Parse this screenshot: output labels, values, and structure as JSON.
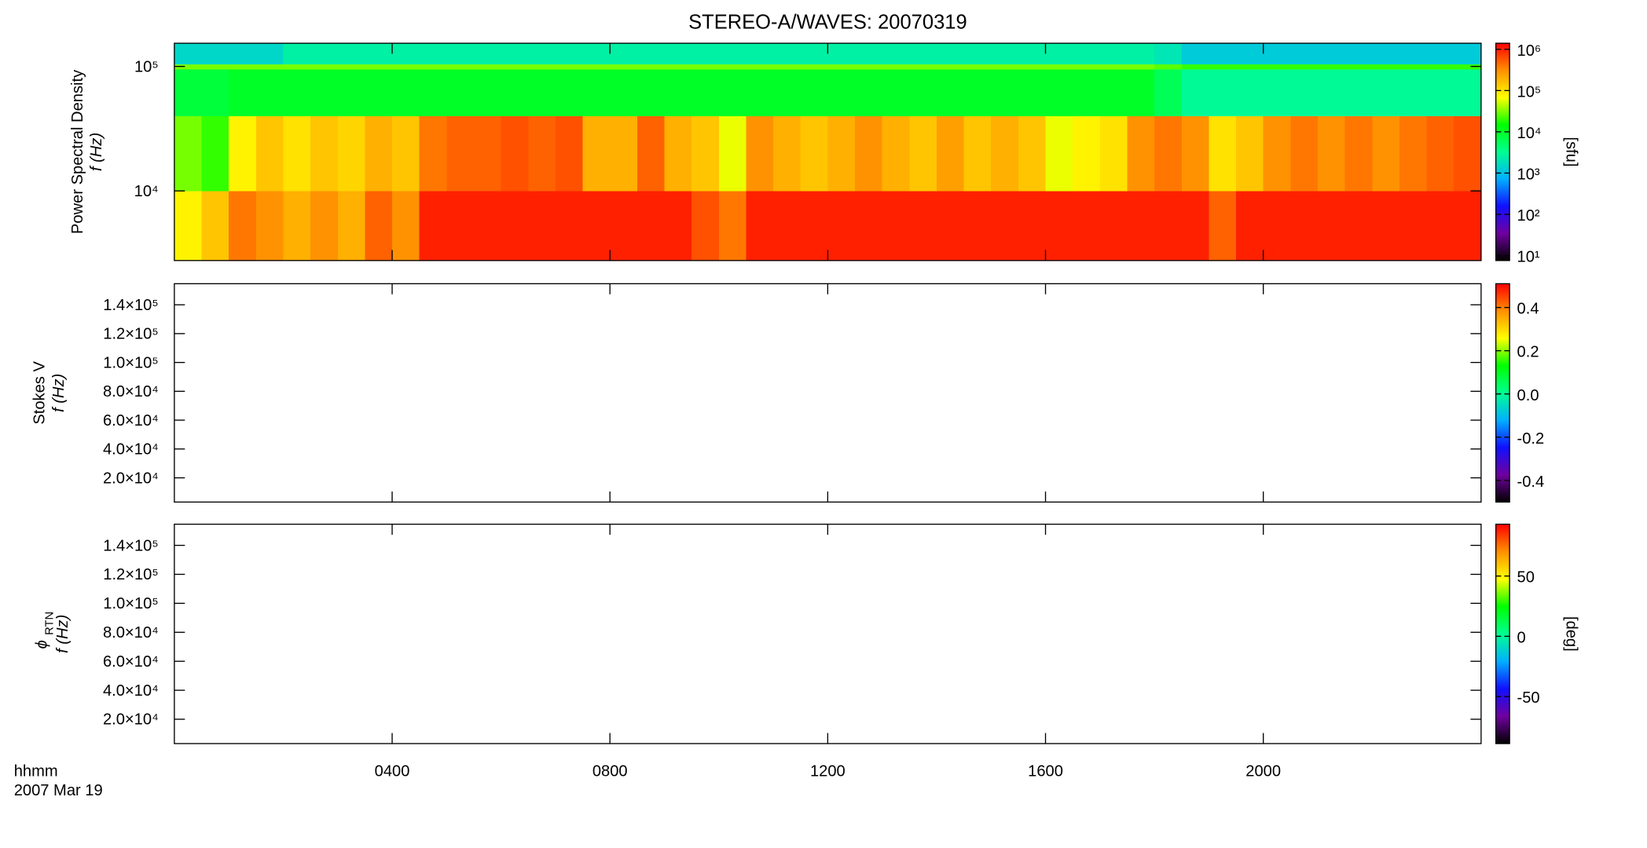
{
  "chart_data": [
    {
      "type": "spectrogram",
      "title": "STEREO-A/WAVES: 20070319",
      "ylabel_lines": [
        "Power Spectral Density",
        "f (Hz)"
      ],
      "ylog": true,
      "ylim": [
        2760,
        153500
      ],
      "yticks": [
        {
          "value": 10000,
          "label": "10⁴"
        },
        {
          "value": 100000,
          "label": "10⁵"
        }
      ],
      "xlim": [
        0,
        24
      ],
      "time_edges": [
        0,
        0.5,
        1,
        1.5,
        2,
        2.5,
        3,
        3.5,
        4,
        4.5,
        5,
        5.5,
        6,
        6.5,
        7,
        7.5,
        8,
        8.5,
        9,
        9.5,
        10,
        10.5,
        11,
        11.5,
        12,
        12.5,
        13,
        13.5,
        14,
        14.5,
        15,
        15.5,
        16,
        16.5,
        17,
        17.5,
        18,
        18.5,
        19,
        19.5,
        20,
        20.5,
        21,
        21.5,
        22,
        22.5,
        23,
        23.5,
        24
      ],
      "frequency_edges": [
        2760,
        10000,
        40000,
        95000,
        105000,
        153500
      ],
      "z": [
        [
          80000,
          150000,
          400000,
          300000,
          200000,
          300000,
          200000,
          500000,
          300000,
          1000000,
          1000000,
          1000000,
          1000000,
          1000000,
          1000000,
          1000000,
          1000000,
          1000000,
          1000000,
          600000,
          400000,
          1000000,
          1000000,
          1000000,
          1000000,
          1000000,
          1000000,
          1000000,
          1000000,
          1000000,
          1000000,
          1000000,
          1000000,
          1000000,
          1000000,
          1000000,
          1000000,
          1000000,
          500000,
          1000000,
          1000000,
          1000000,
          1000000,
          1000000,
          1000000,
          1000000,
          1000000,
          1000000
        ],
        [
          30000,
          20000,
          80000,
          150000,
          100000,
          150000,
          120000,
          200000,
          150000,
          400000,
          500000,
          500000,
          600000,
          500000,
          600000,
          200000,
          200000,
          500000,
          200000,
          150000,
          60000,
          300000,
          200000,
          150000,
          200000,
          300000,
          200000,
          150000,
          250000,
          150000,
          200000,
          150000,
          60000,
          80000,
          100000,
          300000,
          400000,
          300000,
          100000,
          150000,
          300000,
          400000,
          300000,
          400000,
          300000,
          400000,
          500000,
          600000
        ],
        [
          8000,
          8000,
          10000,
          10000,
          10000,
          10000,
          10000,
          10000,
          10000,
          10000,
          10000,
          10000,
          10000,
          10000,
          10000,
          10000,
          10000,
          10000,
          10000,
          10000,
          10000,
          10000,
          10000,
          10000,
          10000,
          10000,
          10000,
          10000,
          10000,
          10000,
          10000,
          10000,
          10000,
          10000,
          10000,
          10000,
          6000,
          3000,
          3000,
          3000,
          3000,
          3000,
          3000,
          3000,
          3000,
          3000,
          3000,
          3000
        ],
        [
          30000,
          30000,
          30000,
          30000,
          30000,
          30000,
          30000,
          30000,
          30000,
          30000,
          30000,
          30000,
          30000,
          30000,
          30000,
          30000,
          30000,
          30000,
          30000,
          30000,
          30000,
          30000,
          30000,
          30000,
          30000,
          30000,
          30000,
          30000,
          30000,
          30000,
          30000,
          30000,
          30000,
          30000,
          30000,
          30000,
          25000,
          20000,
          20000,
          20000,
          20000,
          20000,
          20000,
          20000,
          20000,
          20000,
          20000,
          20000
        ],
        [
          1500,
          1500,
          1500,
          1500,
          2500,
          2500,
          2500,
          2500,
          2500,
          2500,
          2500,
          2500,
          2500,
          2500,
          2500,
          2500,
          2500,
          2500,
          2500,
          2500,
          2500,
          2500,
          2500,
          2500,
          2500,
          2500,
          2500,
          2500,
          2500,
          2500,
          2500,
          2500,
          2500,
          2500,
          2500,
          2500,
          2000,
          1200,
          1200,
          1200,
          1200,
          1200,
          1200,
          1200,
          1200,
          1200,
          1200,
          1200
        ]
      ],
      "colorbar": {
        "log": true,
        "clim": [
          7.6,
          1400000
        ],
        "label": "[sfu]",
        "ticks": [
          {
            "value": 10,
            "label": "10¹"
          },
          {
            "value": 100,
            "label": "10²"
          },
          {
            "value": 1000,
            "label": "10³"
          },
          {
            "value": 10000,
            "label": "10⁴"
          },
          {
            "value": 100000,
            "label": "10⁵"
          },
          {
            "value": 1000000,
            "label": "10⁶"
          }
        ]
      },
      "colormap": [
        "#000000",
        "#7000a0",
        "#1010ff",
        "#00b0ff",
        "#00ff90",
        "#00ff00",
        "#ffff00",
        "#ff9000",
        "#ff0000"
      ]
    },
    {
      "type": "spectrogram",
      "ylabel_lines": [
        "Stokes V",
        "f (Hz)"
      ],
      "ylog": false,
      "ylim": [
        3200,
        154600
      ],
      "yticks": [
        {
          "value": 20000,
          "label": "2.0×10⁴"
        },
        {
          "value": 40000,
          "label": "4.0×10⁴"
        },
        {
          "value": 60000,
          "label": "6.0×10⁴"
        },
        {
          "value": 80000,
          "label": "8.0×10⁴"
        },
        {
          "value": 100000,
          "label": "1.0×10⁵"
        },
        {
          "value": 120000,
          "label": "1.2×10⁵"
        },
        {
          "value": 140000,
          "label": "1.4×10⁵"
        }
      ],
      "xlim": [
        0,
        24
      ],
      "colorbar": {
        "log": false,
        "clim": [
          -0.5,
          0.51
        ],
        "ticks": [
          -0.4,
          -0.2,
          {
            "value": 0,
            "label": "0.0"
          },
          0.2,
          0.4
        ]
      },
      "colormap": [
        "#000000",
        "#7000a0",
        "#1010ff",
        "#00b0ff",
        "#00ff90",
        "#00ff00",
        "#ffff00",
        "#ff9000",
        "#ff0000"
      ]
    },
    {
      "type": "spectrogram",
      "ylabel_symbol": "ϕ",
      "ylabel_subscript": "RTN",
      "ylabel_lines": [
        "f (Hz)"
      ],
      "ylog": false,
      "ylim": [
        3200,
        154600
      ],
      "yticks": [
        {
          "value": 20000,
          "label": "2.0×10⁴"
        },
        {
          "value": 40000,
          "label": "4.0×10⁴"
        },
        {
          "value": 60000,
          "label": "6.0×10⁴"
        },
        {
          "value": 80000,
          "label": "8.0×10⁴"
        },
        {
          "value": 100000,
          "label": "1.0×10⁵"
        },
        {
          "value": 120000,
          "label": "1.2×10⁵"
        },
        {
          "value": 140000,
          "label": "1.4×10⁵"
        }
      ],
      "xlim": [
        0,
        24
      ],
      "xticks": [
        {
          "value": 4,
          "label": "0400"
        },
        {
          "value": 8,
          "label": "0800"
        },
        {
          "value": 12,
          "label": "1200"
        },
        {
          "value": 16,
          "label": "1600"
        },
        {
          "value": 20,
          "label": "2000"
        }
      ],
      "x_label": "hhmm",
      "date_label": "2007 Mar 19",
      "colorbar": {
        "log": false,
        "clim": [
          -89,
          93
        ],
        "label": "[deg]",
        "ticks": [
          -50,
          0,
          50
        ]
      },
      "colormap": [
        "#000000",
        "#7000a0",
        "#1010ff",
        "#00b0ff",
        "#00ff90",
        "#00ff00",
        "#ffff00",
        "#ff9000",
        "#ff0000"
      ]
    }
  ]
}
